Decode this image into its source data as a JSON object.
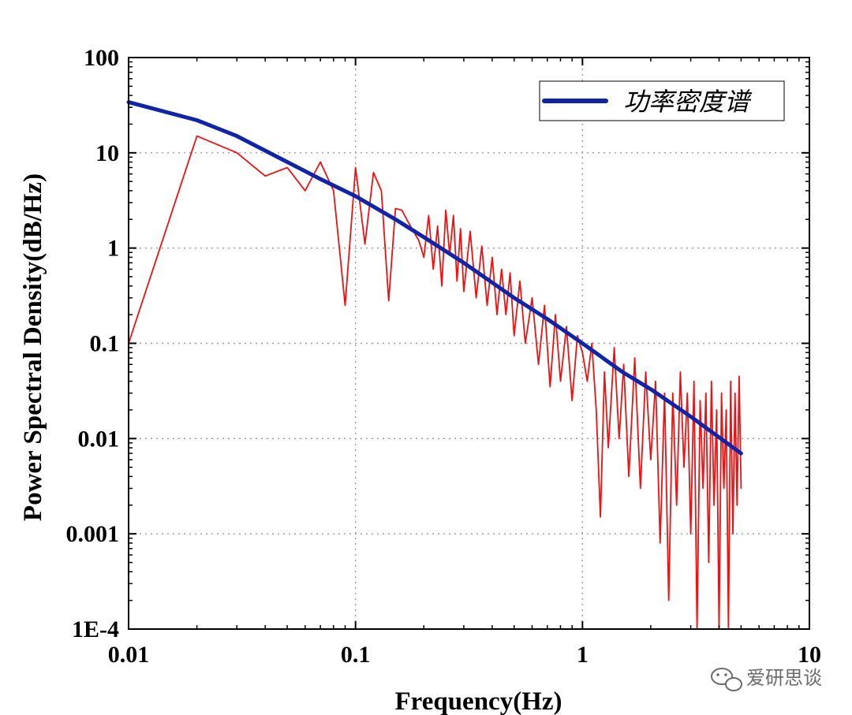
{
  "chart_data": {
    "type": "line",
    "xlabel": "Frequency(Hz)",
    "ylabel": "Power Spectral Density(dB/Hz)",
    "xscale": "log",
    "yscale": "log",
    "xlim": [
      0.01,
      10
    ],
    "ylim": [
      0.0001,
      100
    ],
    "x_ticks": [
      0.01,
      0.1,
      1,
      10
    ],
    "x_tick_labels": [
      "0.01",
      "0.1",
      "1",
      "10"
    ],
    "y_ticks": [
      0.0001,
      0.001,
      0.01,
      0.1,
      1,
      10,
      100
    ],
    "y_tick_labels": [
      "1E-4",
      "0.001",
      "0.01",
      "0.1",
      "1",
      "10",
      "100"
    ],
    "grid": true,
    "legend_position": "top-right",
    "series": [
      {
        "name": "功率密度谱",
        "color": "#1024a8",
        "x": [
          0.01,
          0.02,
          0.03,
          0.05,
          0.07,
          0.1,
          0.15,
          0.2,
          0.3,
          0.5,
          0.7,
          1,
          1.5,
          2,
          3,
          5
        ],
        "y": [
          34,
          22,
          15,
          8,
          5.3,
          3.5,
          2,
          1.3,
          0.7,
          0.3,
          0.18,
          0.1,
          0.05,
          0.033,
          0.017,
          0.007
        ]
      },
      {
        "name": "",
        "color": "#ee1111",
        "x": [
          0.01,
          0.02,
          0.03,
          0.04,
          0.05,
          0.06,
          0.07,
          0.08,
          0.09,
          0.1,
          0.11,
          0.12,
          0.13,
          0.14,
          0.15,
          0.16,
          0.17,
          0.18,
          0.19,
          0.2,
          0.21,
          0.22,
          0.23,
          0.24,
          0.25,
          0.26,
          0.27,
          0.28,
          0.29,
          0.3,
          0.32,
          0.34,
          0.36,
          0.38,
          0.4,
          0.42,
          0.44,
          0.46,
          0.48,
          0.5,
          0.53,
          0.56,
          0.6,
          0.64,
          0.68,
          0.72,
          0.76,
          0.8,
          0.85,
          0.9,
          0.95,
          1,
          1.05,
          1.1,
          1.15,
          1.2,
          1.25,
          1.3,
          1.38,
          1.45,
          1.52,
          1.6,
          1.7,
          1.8,
          1.9,
          2,
          2.1,
          2.2,
          2.3,
          2.4,
          2.5,
          2.6,
          2.7,
          2.8,
          2.9,
          3,
          3.1,
          3.2,
          3.3,
          3.4,
          3.5,
          3.6,
          3.7,
          3.8,
          3.9,
          4,
          4.1,
          4.2,
          4.3,
          4.4,
          4.5,
          4.6,
          4.7,
          4.8,
          4.9,
          5
        ],
        "y": [
          0.1,
          15,
          10,
          5.7,
          7,
          4,
          8,
          4,
          0.25,
          7,
          1.1,
          6.2,
          4,
          0.28,
          2.6,
          2.5,
          1.9,
          1.5,
          1.2,
          0.8,
          2.2,
          0.6,
          1.7,
          0.4,
          2.5,
          0.85,
          2.2,
          0.45,
          1.6,
          0.35,
          1.5,
          0.3,
          1.05,
          0.25,
          0.8,
          0.2,
          0.6,
          0.2,
          0.55,
          0.12,
          0.45,
          0.1,
          0.3,
          0.06,
          0.25,
          0.035,
          0.2,
          0.04,
          0.15,
          0.025,
          0.12,
          0.08,
          0.04,
          0.1,
          0.02,
          0.0015,
          0.05,
          0.008,
          0.09,
          0.01,
          0.06,
          0.004,
          0.07,
          0.003,
          0.05,
          0.006,
          0.04,
          0.0008,
          0.03,
          0.0002,
          0.03,
          0.002,
          0.05,
          0.005,
          0.03,
          0.001,
          0.04,
          0.0001,
          0.025,
          0.003,
          0.03,
          0.0005,
          0.04,
          0.002,
          0.02,
          0.0001,
          0.03,
          0.003,
          0.02,
          0.0001,
          0.04,
          0.001,
          0.03,
          0.002,
          0.045,
          0.003
        ]
      }
    ]
  },
  "watermark": {
    "icon": "wechat-icon",
    "text": "爱研思谈",
    "color": "#6b6b6b"
  }
}
